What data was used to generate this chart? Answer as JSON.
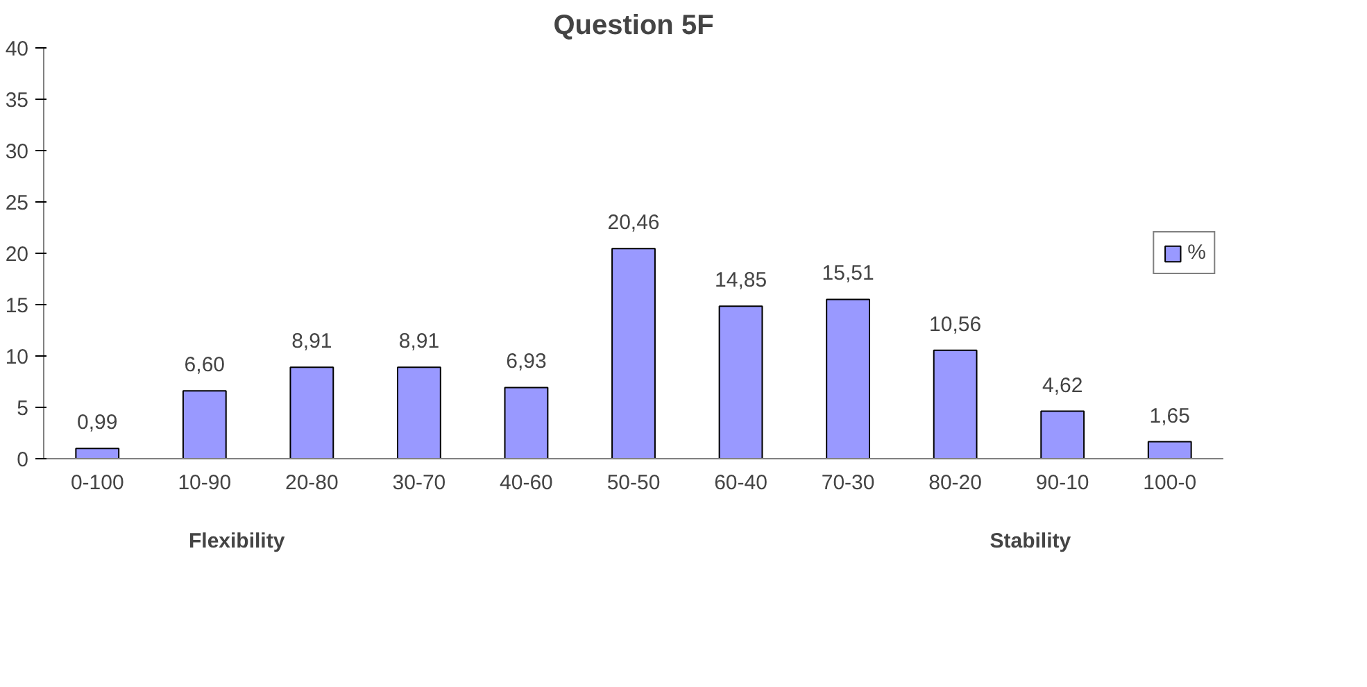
{
  "chart_data": {
    "type": "bar",
    "title": "Question 5F",
    "categories": [
      "0-100",
      "10-90",
      "20-80",
      "30-70",
      "40-60",
      "50-50",
      "60-40",
      "70-30",
      "80-20",
      "90-10",
      "100-0"
    ],
    "series": [
      {
        "name": "%",
        "color": "#9999ff",
        "values": [
          0.99,
          6.6,
          8.91,
          8.91,
          6.93,
          20.46,
          14.85,
          15.51,
          10.56,
          4.62,
          1.65
        ],
        "value_labels": [
          "0,99",
          "6,60",
          "8,91",
          "8,91",
          "6,93",
          "20,46",
          "14,85",
          "15,51",
          "10,56",
          "4,62",
          "1,65"
        ]
      }
    ],
    "ylim": [
      0,
      40
    ],
    "yticks": [
      0,
      5,
      10,
      15,
      20,
      25,
      30,
      35,
      40
    ],
    "grid": false,
    "legend": "right",
    "annotations": [
      "Flexibility",
      "Stability"
    ]
  }
}
